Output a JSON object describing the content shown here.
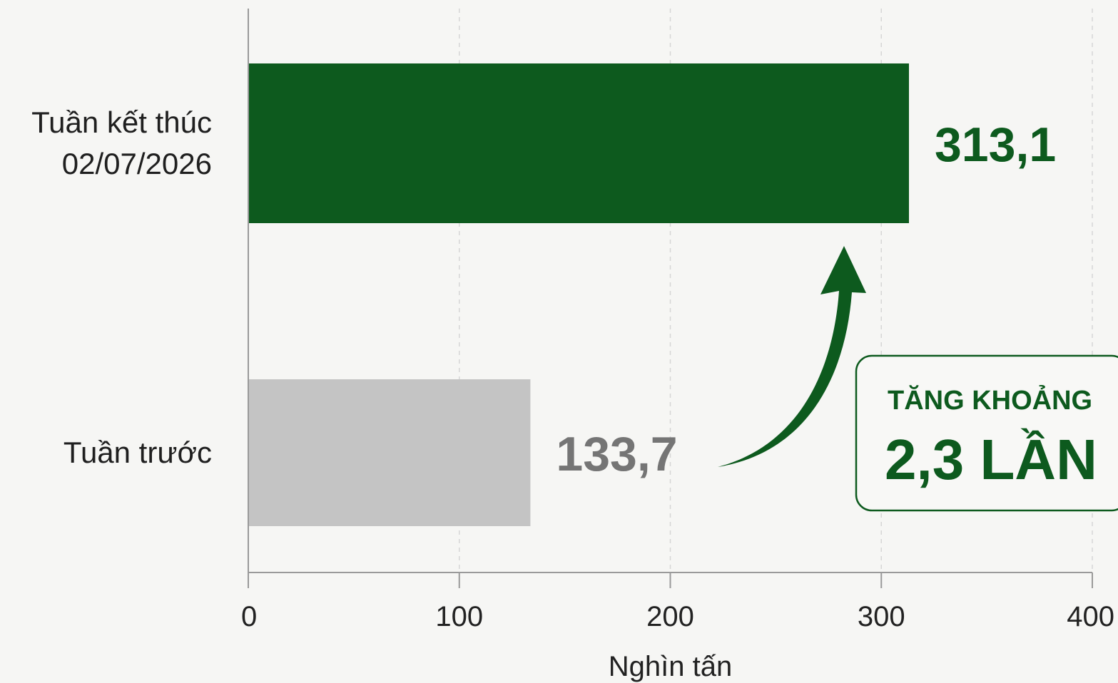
{
  "chart_data": {
    "type": "bar",
    "orientation": "horizontal",
    "title": "",
    "xlabel": "Nghìn tấn",
    "ylabel": "",
    "xlim": [
      0,
      400
    ],
    "ticks": [
      0,
      100,
      200,
      300,
      400
    ],
    "grid": "vertical dashed",
    "bars": [
      {
        "category_lines": [
          "Tuần kết thúc",
          "02/07/2026"
        ],
        "value": 313.1,
        "label": "313,1",
        "color": "#0d5a1e",
        "label_color": "#0d5a1e"
      },
      {
        "category_lines": [
          "Tuần trước"
        ],
        "value": 133.7,
        "label": "133,7",
        "color": "#c4c4c4",
        "label_color": "#757575"
      }
    ],
    "annotation": {
      "line1": "TĂNG KHOẢNG",
      "line2": "2,3 LẦN",
      "color": "#0d5a1e",
      "arrow": "curved-arrow-up-icon"
    }
  }
}
